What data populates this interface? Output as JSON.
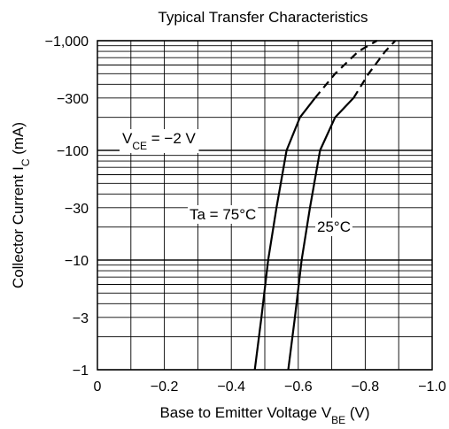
{
  "chart_data": {
    "type": "line",
    "title": "Typical Transfer Characteristics",
    "xlabel": {
      "prefix": "Base to Emitter Voltage  V",
      "sub": "BE",
      "suffix": "  (V)"
    },
    "ylabel": {
      "prefix": "Collector Current  I",
      "sub": "C",
      "suffix": "  (mA)"
    },
    "x_scale": "linear",
    "y_scale": "log",
    "xlim": [
      0,
      -1.0
    ],
    "ylim": [
      -1,
      -1000
    ],
    "x_ticks": [
      {
        "value": 0,
        "label": "0"
      },
      {
        "value": -0.2,
        "label": "−0.2"
      },
      {
        "value": -0.4,
        "label": "−0.4"
      },
      {
        "value": -0.6,
        "label": "−0.6"
      },
      {
        "value": -0.8,
        "label": "−0.8"
      },
      {
        "value": -1.0,
        "label": "−1.0"
      }
    ],
    "y_ticks": [
      {
        "value": -1,
        "label": "−1"
      },
      {
        "value": -3,
        "label": "−3"
      },
      {
        "value": -10,
        "label": "−10"
      },
      {
        "value": -30,
        "label": "−30"
      },
      {
        "value": -100,
        "label": "−100"
      },
      {
        "value": -300,
        "label": "−300"
      },
      {
        "value": -1000,
        "label": "−1,000"
      }
    ],
    "grid": true,
    "annotations": {
      "condition": {
        "prefix": "V",
        "sub": "CE",
        "suffix": " = −2 V"
      }
    },
    "series": [
      {
        "name": "Ta = 75°C",
        "points": [
          {
            "x": -0.47,
            "y": -1
          },
          {
            "x": -0.49,
            "y": -3
          },
          {
            "x": -0.51,
            "y": -10
          },
          {
            "x": -0.535,
            "y": -30
          },
          {
            "x": -0.565,
            "y": -100
          },
          {
            "x": -0.605,
            "y": -200
          },
          {
            "x": -0.65,
            "y": -300
          }
        ],
        "dashed_points": [
          {
            "x": -0.65,
            "y": -300
          },
          {
            "x": -0.71,
            "y": -500
          },
          {
            "x": -0.78,
            "y": -800
          },
          {
            "x": -0.835,
            "y": -1000
          }
        ]
      },
      {
        "name": "25°C",
        "points": [
          {
            "x": -0.57,
            "y": -1
          },
          {
            "x": -0.59,
            "y": -3
          },
          {
            "x": -0.61,
            "y": -10
          },
          {
            "x": -0.635,
            "y": -30
          },
          {
            "x": -0.665,
            "y": -100
          },
          {
            "x": -0.71,
            "y": -200
          },
          {
            "x": -0.765,
            "y": -300
          }
        ],
        "dashed_points": [
          {
            "x": -0.765,
            "y": -300
          },
          {
            "x": -0.81,
            "y": -500
          },
          {
            "x": -0.86,
            "y": -800
          },
          {
            "x": -0.89,
            "y": -1000
          }
        ]
      }
    ]
  }
}
